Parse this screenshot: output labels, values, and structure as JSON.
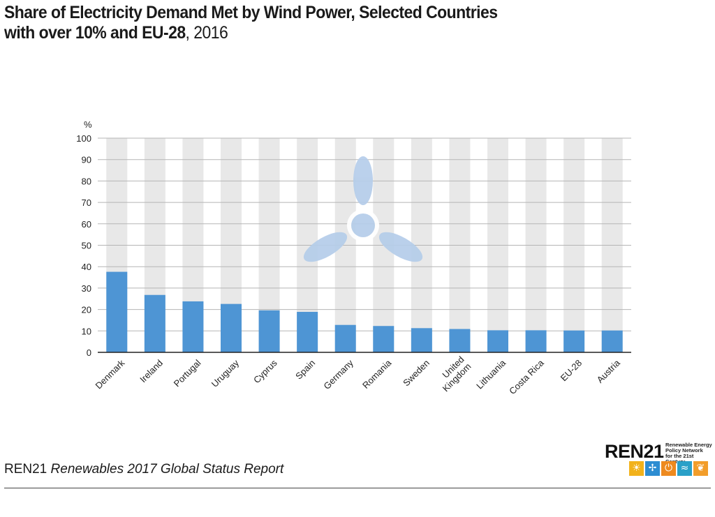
{
  "title": {
    "line1": "Share of Electricity Demand Met by Wind Power, Selected Countries",
    "line2_bold": "with over 10% and EU-28",
    "line2_rest": ", 2016"
  },
  "footer": {
    "org": "REN21",
    "report": "Renewables 2017 Global Status Report"
  },
  "logo": {
    "word_letters": "REN",
    "word_number": "21",
    "tagline": [
      "Renewable Energy",
      "Policy Network",
      "for the 21st Century"
    ],
    "icons": [
      {
        "name": "sun-icon",
        "glyph": "☀",
        "color": "#f2b21b"
      },
      {
        "name": "wind-icon",
        "glyph": "✢",
        "color": "#2d8dd2"
      },
      {
        "name": "power-icon",
        "glyph": "⏻",
        "color": "#ee8a1f"
      },
      {
        "name": "water-icon",
        "glyph": "≈",
        "color": "#2aa0c8"
      },
      {
        "name": "leaf-icon",
        "glyph": "❦",
        "color": "#f29d2a"
      }
    ]
  },
  "chart_data": {
    "type": "bar",
    "title": "Share of Electricity Demand Met by Wind Power, Selected Countries with over 10% and EU-28, 2016",
    "ylabel": "%",
    "ylim": [
      0,
      100
    ],
    "yticks": [
      0,
      10,
      20,
      30,
      40,
      50,
      60,
      70,
      80,
      90,
      100
    ],
    "grid": true,
    "bar_color": "#4e95d4",
    "track_color": "#e8e8e8",
    "watermark": "wind-turbine-icon",
    "categories": [
      "Denmark",
      "Ireland",
      "Portugal",
      "Uruguay",
      "Cyprus",
      "Spain",
      "Germany",
      "Romania",
      "Sweden",
      "United Kingdom",
      "Lithuania",
      "Costa Rica",
      "EU-28",
      "Austria"
    ],
    "values": [
      37.6,
      26.8,
      23.8,
      22.6,
      19.6,
      18.9,
      12.8,
      12.3,
      11.3,
      10.9,
      10.3,
      10.3,
      10.2,
      10.2
    ]
  }
}
